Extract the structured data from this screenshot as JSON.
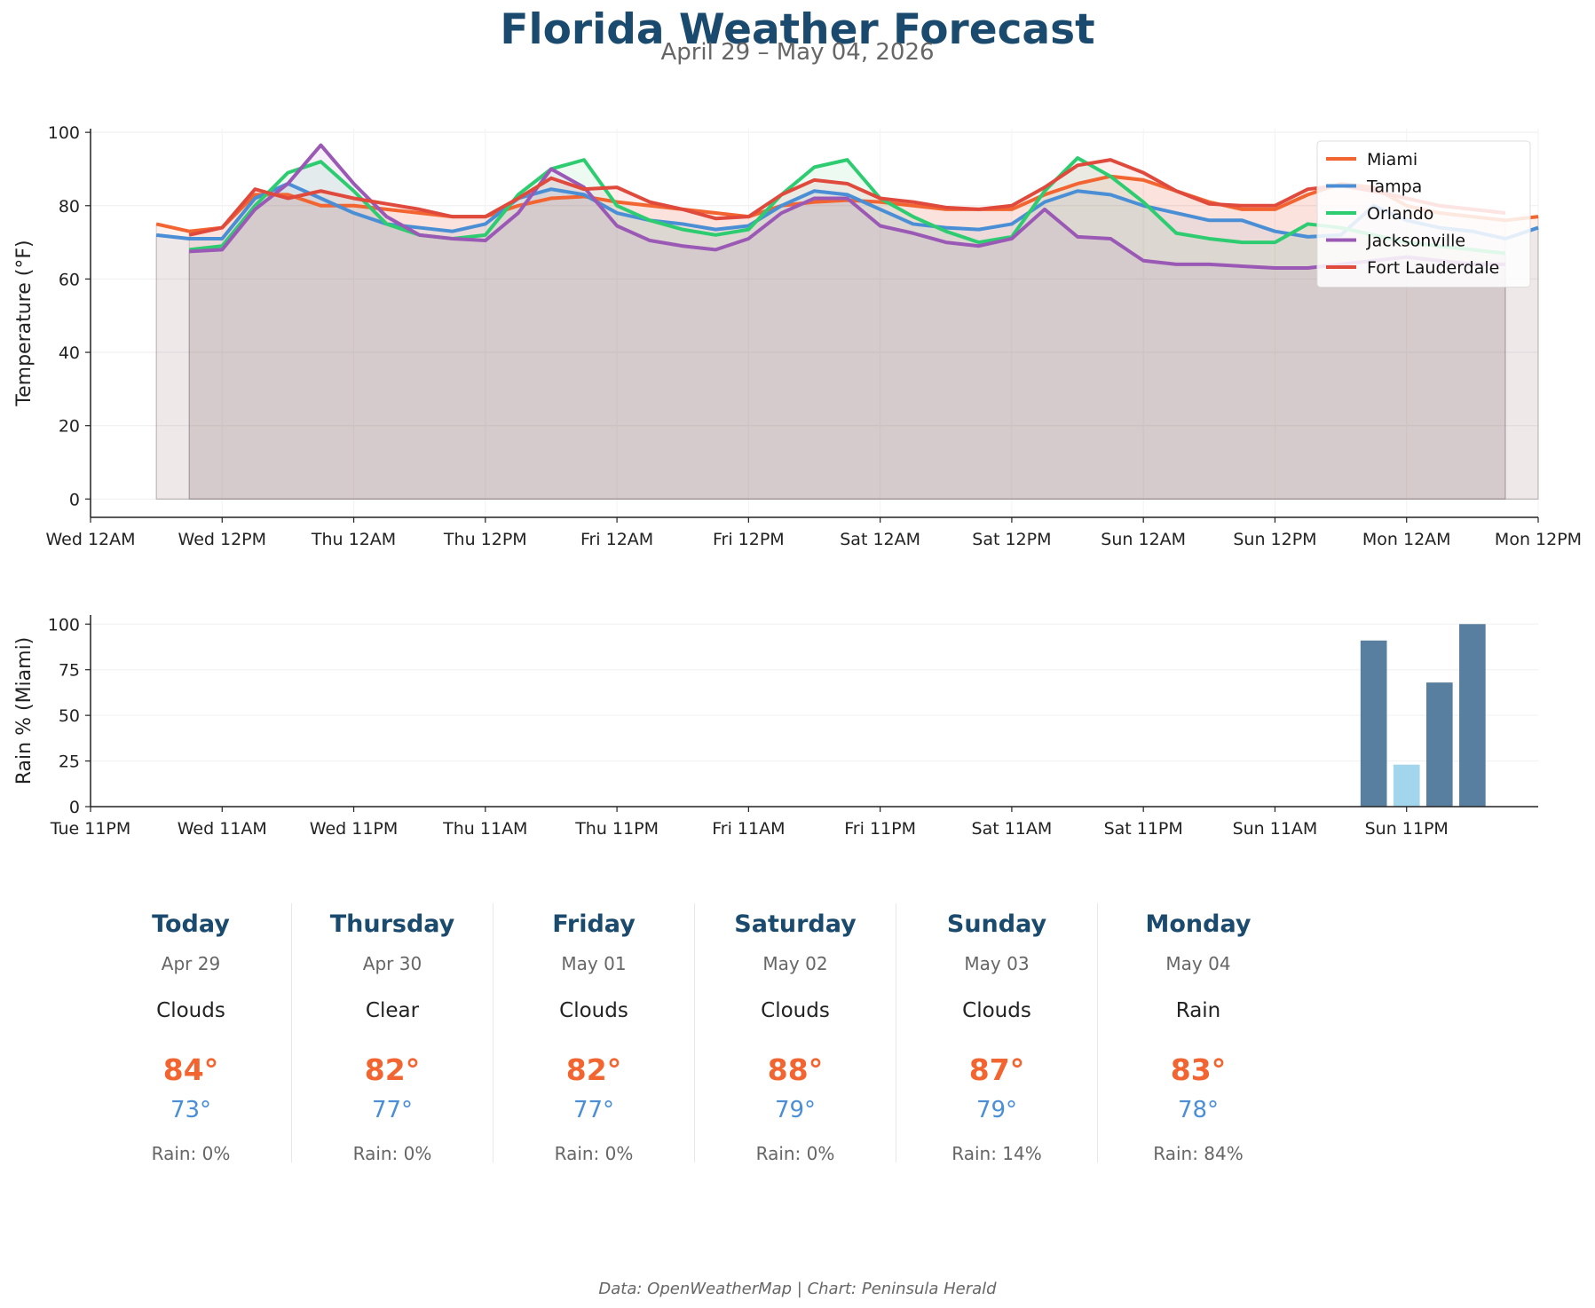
{
  "header": {
    "title": "Florida Weather Forecast",
    "subtitle": "April 29 – May 04, 2026"
  },
  "chart_data": [
    {
      "type": "line",
      "ylabel": "Temperature (°F)",
      "ylim": [
        -5,
        101
      ],
      "yticks": [
        0,
        20,
        40,
        60,
        80,
        100
      ],
      "xlim": [
        0,
        132
      ],
      "xticks": [
        {
          "h": 0,
          "label": "Wed 12AM"
        },
        {
          "h": 12,
          "label": "Wed 12PM"
        },
        {
          "h": 24,
          "label": "Thu 12AM"
        },
        {
          "h": 36,
          "label": "Thu 12PM"
        },
        {
          "h": 48,
          "label": "Fri 12AM"
        },
        {
          "h": 60,
          "label": "Fri 12PM"
        },
        {
          "h": 72,
          "label": "Sat 12AM"
        },
        {
          "h": 84,
          "label": "Sat 12PM"
        },
        {
          "h": 96,
          "label": "Sun 12AM"
        },
        {
          "h": 108,
          "label": "Sun 12PM"
        },
        {
          "h": 120,
          "label": "Mon 12AM"
        },
        {
          "h": 132,
          "label": "Mon 12PM"
        }
      ],
      "grid": true,
      "legend": "top-right",
      "series": [
        {
          "name": "Miami",
          "color": "#f26430",
          "x": [
            6,
            9,
            12,
            15,
            18,
            21,
            24,
            27,
            30,
            33,
            36,
            39,
            42,
            45,
            48,
            51,
            54,
            57,
            60,
            63,
            66,
            69,
            72,
            75,
            78,
            81,
            84,
            87,
            90,
            93,
            96,
            99,
            102,
            105,
            108,
            111,
            114,
            117,
            120,
            123,
            126,
            129,
            132
          ],
          "y": [
            75,
            73,
            74,
            83,
            83,
            80,
            80,
            79,
            78,
            77,
            77,
            80,
            82,
            82.5,
            81,
            80,
            79,
            78,
            77,
            80,
            81,
            81.5,
            81,
            80,
            79,
            79,
            79,
            83,
            86,
            88,
            87,
            84,
            81,
            79,
            79,
            83,
            86,
            85,
            80,
            78,
            77,
            76,
            77
          ]
        },
        {
          "name": "Tampa",
          "color": "#4a8fd6",
          "x": [
            6,
            9,
            12,
            15,
            18,
            21,
            24,
            27,
            30,
            33,
            36,
            39,
            42,
            45,
            48,
            51,
            54,
            57,
            60,
            63,
            66,
            69,
            72,
            75,
            78,
            81,
            84,
            87,
            90,
            93,
            96,
            99,
            102,
            105,
            108,
            111,
            114,
            117,
            120,
            123,
            126,
            129,
            132
          ],
          "y": [
            72,
            71,
            71,
            82,
            86,
            82,
            78,
            75,
            74,
            73,
            75,
            82,
            84.5,
            83,
            78,
            76,
            75,
            73.5,
            74.5,
            80,
            84,
            83,
            79,
            75,
            74,
            73.5,
            75,
            81,
            84,
            83,
            80,
            78,
            76,
            76,
            73,
            71.5,
            72,
            80,
            76,
            74,
            73,
            71,
            74
          ]
        },
        {
          "name": "Orlando",
          "color": "#2ecc71",
          "x": [
            9,
            12,
            15,
            18,
            21,
            24,
            27,
            30,
            33,
            36,
            39,
            42,
            45,
            48,
            51,
            54,
            57,
            60,
            63,
            66,
            69,
            72,
            75,
            78,
            81,
            84,
            87,
            90,
            93,
            96,
            99,
            102,
            105,
            108,
            111,
            114,
            117,
            120,
            123,
            126,
            129
          ],
          "y": [
            68,
            69,
            80,
            89,
            92,
            84,
            75,
            72,
            71,
            72,
            83,
            90,
            92.5,
            80,
            76,
            73.5,
            72,
            73.5,
            83,
            90.5,
            92.5,
            82,
            77,
            73,
            70,
            71.5,
            84,
            93,
            88,
            81,
            72.5,
            71,
            70,
            70,
            75,
            74,
            72,
            70,
            69,
            68,
            67
          ]
        },
        {
          "name": "Jacksonville",
          "color": "#9b59b6",
          "x": [
            9,
            12,
            15,
            18,
            21,
            24,
            27,
            30,
            33,
            36,
            39,
            42,
            45,
            48,
            51,
            54,
            57,
            60,
            63,
            66,
            69,
            72,
            75,
            78,
            81,
            84,
            87,
            90,
            93,
            96,
            99,
            102,
            105,
            108,
            111,
            114,
            117,
            120,
            123,
            126,
            129
          ],
          "y": [
            67.5,
            68,
            79,
            86,
            96.5,
            86,
            77,
            72,
            71,
            70.5,
            78,
            90,
            85,
            74.5,
            70.5,
            69,
            68,
            71,
            78,
            82,
            82,
            74.5,
            72.5,
            70,
            69,
            71,
            79,
            71.5,
            71,
            65,
            64,
            64,
            63.5,
            63,
            63,
            64,
            65,
            66,
            65,
            64,
            64
          ]
        },
        {
          "name": "Fort Lauderdale",
          "color": "#e04a3d",
          "x": [
            9,
            12,
            15,
            18,
            21,
            24,
            27,
            30,
            33,
            36,
            39,
            42,
            45,
            48,
            51,
            54,
            57,
            60,
            63,
            66,
            69,
            72,
            75,
            78,
            81,
            84,
            87,
            90,
            93,
            96,
            99,
            102,
            105,
            108,
            111,
            114,
            117,
            120,
            123,
            126,
            129
          ],
          "y": [
            72,
            74,
            84.5,
            82,
            84,
            82,
            80.5,
            79,
            77,
            77,
            82,
            87.5,
            84.5,
            85,
            81,
            79,
            76.5,
            77,
            83,
            87,
            86,
            82,
            81,
            79.5,
            79,
            80,
            85,
            91,
            92.5,
            89,
            84,
            80.5,
            80,
            80,
            84.5,
            85.5,
            84,
            82,
            80,
            79,
            78
          ]
        }
      ]
    },
    {
      "type": "bar",
      "ylabel": "Rain % (Miami)",
      "ylim": [
        0,
        105
      ],
      "yticks": [
        0,
        25,
        50,
        75,
        100
      ],
      "xlim": [
        -1,
        131
      ],
      "xticks": [
        {
          "h": -1,
          "label": "Tue 11PM"
        },
        {
          "h": 11,
          "label": "Wed 11AM"
        },
        {
          "h": 23,
          "label": "Wed 11PM"
        },
        {
          "h": 35,
          "label": "Thu 11AM"
        },
        {
          "h": 47,
          "label": "Thu 11PM"
        },
        {
          "h": 59,
          "label": "Fri 11AM"
        },
        {
          "h": 71,
          "label": "Fri 11PM"
        },
        {
          "h": 83,
          "label": "Sat 11AM"
        },
        {
          "h": 95,
          "label": "Sat 11PM"
        },
        {
          "h": 107,
          "label": "Sun 11AM"
        },
        {
          "h": 119,
          "label": "Sun 11PM"
        }
      ],
      "grid": true,
      "bar_width_hours": 2.4,
      "bars": [
        {
          "h": 116,
          "value": 91,
          "color": "#587f9f"
        },
        {
          "h": 119,
          "value": 23,
          "color": "#a3d6ec"
        },
        {
          "h": 122,
          "value": 68,
          "color": "#587f9f"
        },
        {
          "h": 125,
          "value": 100,
          "color": "#587f9f"
        }
      ]
    }
  ],
  "forecast": [
    {
      "day": "Today",
      "date": "Apr 29",
      "condition": "Clouds",
      "high": "84°",
      "low": "73°",
      "rain": "Rain: 0%"
    },
    {
      "day": "Thursday",
      "date": "Apr 30",
      "condition": "Clear",
      "high": "82°",
      "low": "77°",
      "rain": "Rain: 0%"
    },
    {
      "day": "Friday",
      "date": "May 01",
      "condition": "Clouds",
      "high": "82°",
      "low": "77°",
      "rain": "Rain: 0%"
    },
    {
      "day": "Saturday",
      "date": "May 02",
      "condition": "Clouds",
      "high": "88°",
      "low": "79°",
      "rain": "Rain: 0%"
    },
    {
      "day": "Sunday",
      "date": "May 03",
      "condition": "Clouds",
      "high": "87°",
      "low": "79°",
      "rain": "Rain: 14%"
    },
    {
      "day": "Monday",
      "date": "May 04",
      "condition": "Rain",
      "high": "83°",
      "low": "78°",
      "rain": "Rain: 84%"
    }
  ],
  "footer": "Data: OpenWeatherMap | Chart: Peninsula Herald"
}
